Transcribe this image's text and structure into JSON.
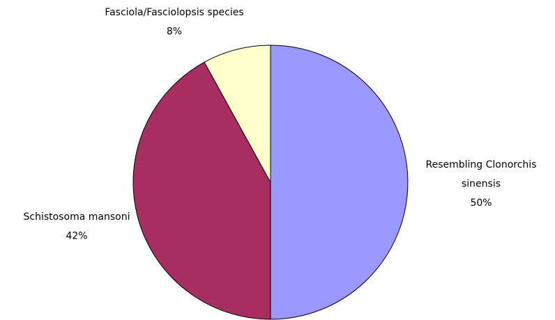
{
  "chart_data": {
    "type": "pie",
    "categories": [
      "Resembling Clonorchis sinensis",
      "Schistosoma mansoni",
      "Fasciola/Fasciolopsis species"
    ],
    "values": [
      50,
      42,
      8
    ],
    "value_labels": [
      "50%",
      "42%",
      "8%"
    ],
    "colors": [
      "#9999ff",
      "#a82d60",
      "#ffffcc"
    ]
  }
}
